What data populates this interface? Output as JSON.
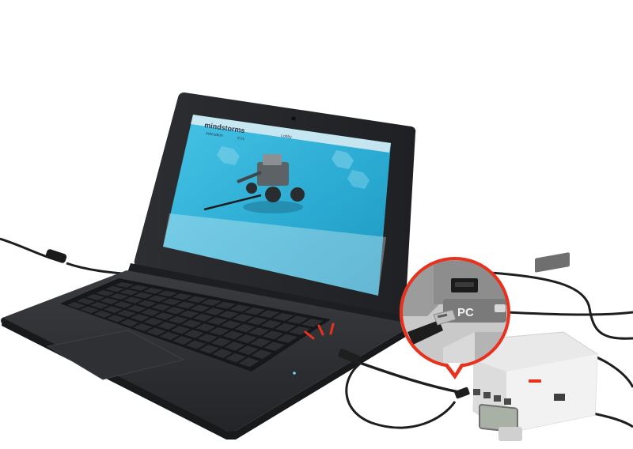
{
  "screen": {
    "logo_text": "mindstorms",
    "logo_sub": "education",
    "logo_ver": "EV3",
    "tab_label": "Lobby"
  },
  "callout": {
    "port_label": "PC",
    "accent_color": "#e8321e"
  },
  "colors": {
    "laptop_body": "#2b2d30",
    "screen_blue": "#2bb0d6",
    "ev3_brick": "#e9e9e9",
    "ev3_dark": "#6f6f6f",
    "cable": "#1e1e1e"
  }
}
